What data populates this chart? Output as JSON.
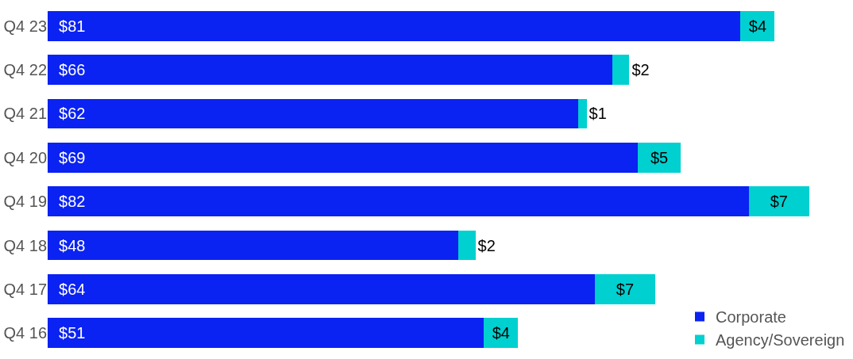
{
  "chart_data": {
    "type": "bar",
    "orientation": "horizontal",
    "stacked": true,
    "data_labels": true,
    "legend": "bottom right",
    "categories": [
      "Q4 23",
      "Q4 22",
      "Q4 21",
      "Q4 20",
      "Q4 19",
      "Q4 18",
      "Q4 17",
      "Q4 16"
    ],
    "series": [
      {
        "name": "Corporate",
        "color": "#0a22f2",
        "values": [
          81,
          66,
          62,
          69,
          82,
          48,
          64,
          51
        ],
        "value_labels": [
          "$81",
          "$66",
          "$62",
          "$69",
          "$82",
          "$48",
          "$64",
          "$51"
        ]
      },
      {
        "name": "Agency/Sovereign",
        "color": "#00d0d0",
        "values": [
          4,
          2,
          1,
          5,
          7,
          2,
          7,
          4
        ],
        "value_labels": [
          "$4",
          "$2",
          "$1",
          "$5",
          "$7",
          "$2",
          "$7",
          "$4"
        ]
      }
    ]
  }
}
